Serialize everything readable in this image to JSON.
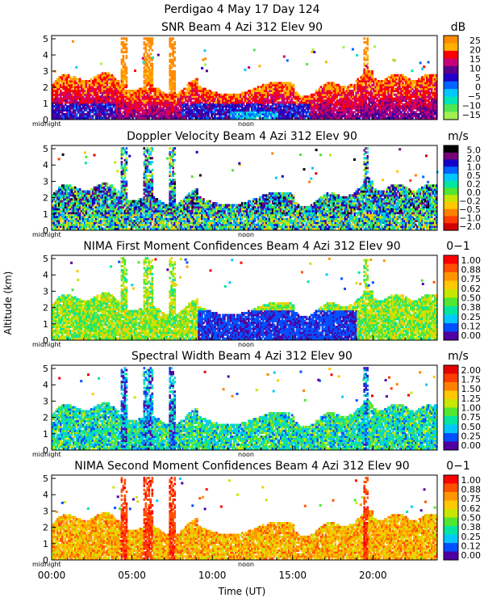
{
  "main_title": "Perdigao    4 May 17 Day 124",
  "x_axis": {
    "label": "Time (UT)",
    "range_hours": [
      0,
      24
    ],
    "tick_labels": [
      "00:00",
      "05:00",
      "10:00",
      "15:00",
      "20:00"
    ],
    "tick_values": [
      0,
      5,
      10,
      15,
      20
    ],
    "panel_marks": [
      "midnight",
      "noon"
    ]
  },
  "y_axis": {
    "label": "Altitude (km)",
    "range_km": [
      0,
      5.2
    ],
    "tick_labels": [
      "0",
      "1",
      "2",
      "3",
      "4",
      "5"
    ]
  },
  "chart_data": [
    {
      "type": "heatmap",
      "title": "SNR Beam 4 Azi 312 Elev 90",
      "unit": "dB",
      "colorbar": [
        "25",
        "20",
        "15",
        "10",
        "5",
        "0",
        "−5",
        "−10",
        "−15"
      ],
      "colors": [
        "#ff8c00",
        "#ffb000",
        "#ff0000",
        "#c80078",
        "#5a008c",
        "#1e00c8",
        "#0064ff",
        "#00c8ff",
        "#00e6b4",
        "#50e650",
        "#a0f050"
      ]
    },
    {
      "type": "heatmap",
      "title": "Doppler Velocity Beam 4 Azi 312 Elev 90",
      "unit": "m/s",
      "colorbar": [
        "5.0",
        "2.0",
        "1.0",
        "0.5",
        "0.2",
        "0.0",
        "−0.2",
        "−0.5",
        "−1.0",
        "−2.0"
      ],
      "colors": [
        "#000000",
        "#78007a",
        "#1400c8",
        "#0064ff",
        "#00c8ff",
        "#00e6a0",
        "#50e632",
        "#c8e600",
        "#ffc800",
        "#ff8000",
        "#ff3c00",
        "#d20000"
      ]
    },
    {
      "type": "heatmap",
      "title": "NIMA First Moment Confidences Beam 4 Azi 312 Elev 90",
      "unit": "0−1",
      "colorbar": [
        "1.00",
        "0.88",
        "0.75",
        "0.62",
        "0.50",
        "0.38",
        "0.25",
        "0.12",
        "0.00"
      ],
      "colors": [
        "#ff0000",
        "#ff5000",
        "#ff9600",
        "#ffc800",
        "#c8e600",
        "#50e632",
        "#00e6a0",
        "#00c8ff",
        "#0050ff",
        "#5000a0"
      ]
    },
    {
      "type": "heatmap",
      "title": "Spectral Width Beam 4 Azi 312 Elev 90",
      "unit": "m/s",
      "colorbar": [
        "2.00",
        "1.75",
        "1.50",
        "1.25",
        "1.00",
        "0.75",
        "0.50",
        "0.25",
        "0.00"
      ],
      "colors": [
        "#e60000",
        "#ff3c00",
        "#ff8000",
        "#ffc800",
        "#c8e600",
        "#50e632",
        "#00e6a0",
        "#00c8ff",
        "#0050ff",
        "#5000a0"
      ]
    },
    {
      "type": "heatmap",
      "title": "NIMA Second Moment Confidences Beam 4 Azi 312 Elev 90",
      "unit": "0−1",
      "colorbar": [
        "1.00",
        "0.88",
        "0.75",
        "0.62",
        "0.50",
        "0.38",
        "0.25",
        "0.12",
        "0.00"
      ],
      "colors": [
        "#ff0000",
        "#ff5000",
        "#ff9600",
        "#ffc800",
        "#c8e600",
        "#50e632",
        "#00e6a0",
        "#00c8ff",
        "#0050ff",
        "#5000a0"
      ]
    }
  ]
}
